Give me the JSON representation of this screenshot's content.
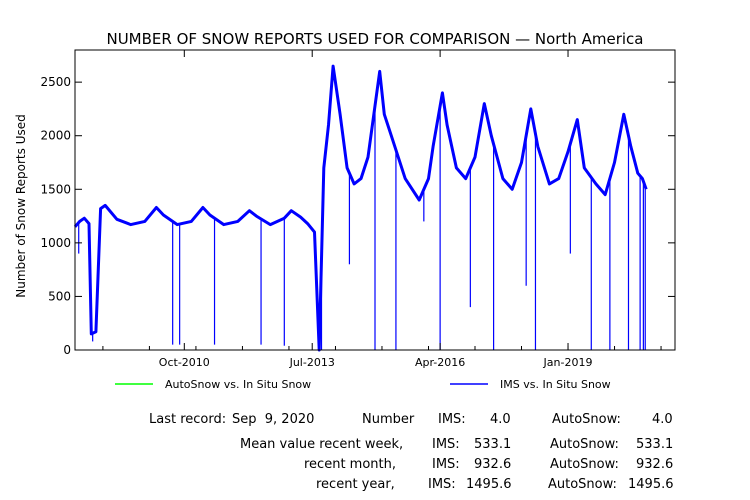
{
  "chart_data": {
    "type": "line",
    "title": "NUMBER OF SNOW REPORTS USED FOR COMPARISON — North America",
    "ylabel": "Number of Snow Reports Used",
    "xlabel": "",
    "ylim": [
      0,
      2800
    ],
    "xlim": [
      2008.4,
      2021.3
    ],
    "y_ticks": [
      0,
      500,
      1000,
      1500,
      2000,
      2500
    ],
    "x_ticks": [
      {
        "label": "Oct-2010",
        "value": 2010.75
      },
      {
        "label": "Jul-2013",
        "value": 2013.5
      },
      {
        "label": "Apr-2016",
        "value": 2016.25
      },
      {
        "label": "Jan-2019",
        "value": 2019.0
      }
    ],
    "grid": false,
    "legend_placement": "bottom",
    "series": [
      {
        "name": "AutoSnow vs. In Situ Snow",
        "color": "#00ff00",
        "points": []
      },
      {
        "name": "IMS vs. In Situ Snow",
        "color": "#0000ff",
        "points": [
          [
            2008.4,
            1150
          ],
          [
            2008.5,
            1200
          ],
          [
            2008.6,
            1230
          ],
          [
            2008.7,
            1180
          ],
          [
            2008.75,
            150
          ],
          [
            2008.85,
            170
          ],
          [
            2008.95,
            1320
          ],
          [
            2009.05,
            1350
          ],
          [
            2009.3,
            1220
          ],
          [
            2009.6,
            1170
          ],
          [
            2009.9,
            1200
          ],
          [
            2010.15,
            1330
          ],
          [
            2010.3,
            1260
          ],
          [
            2010.6,
            1170
          ],
          [
            2010.9,
            1200
          ],
          [
            2011.15,
            1330
          ],
          [
            2011.3,
            1260
          ],
          [
            2011.6,
            1170
          ],
          [
            2011.9,
            1200
          ],
          [
            2012.15,
            1300
          ],
          [
            2012.3,
            1250
          ],
          [
            2012.6,
            1170
          ],
          [
            2012.9,
            1230
          ],
          [
            2013.05,
            1300
          ],
          [
            2013.25,
            1240
          ],
          [
            2013.4,
            1180
          ],
          [
            2013.55,
            1100
          ],
          [
            2013.65,
            0
          ],
          [
            2013.75,
            1700
          ],
          [
            2013.85,
            2100
          ],
          [
            2013.95,
            2650
          ],
          [
            2014.1,
            2200
          ],
          [
            2014.25,
            1700
          ],
          [
            2014.4,
            1550
          ],
          [
            2014.55,
            1600
          ],
          [
            2014.7,
            1800
          ],
          [
            2014.95,
            2600
          ],
          [
            2015.05,
            2200
          ],
          [
            2015.2,
            2000
          ],
          [
            2015.5,
            1600
          ],
          [
            2015.8,
            1400
          ],
          [
            2016.0,
            1600
          ],
          [
            2016.1,
            1900
          ],
          [
            2016.3,
            2400
          ],
          [
            2016.4,
            2100
          ],
          [
            2016.6,
            1700
          ],
          [
            2016.8,
            1600
          ],
          [
            2017.0,
            1800
          ],
          [
            2017.2,
            2300
          ],
          [
            2017.35,
            2000
          ],
          [
            2017.6,
            1600
          ],
          [
            2017.8,
            1500
          ],
          [
            2018.0,
            1750
          ],
          [
            2018.2,
            2250
          ],
          [
            2018.35,
            1900
          ],
          [
            2018.6,
            1550
          ],
          [
            2018.8,
            1600
          ],
          [
            2019.0,
            1850
          ],
          [
            2019.2,
            2150
          ],
          [
            2019.35,
            1700
          ],
          [
            2019.6,
            1550
          ],
          [
            2019.8,
            1450
          ],
          [
            2020.0,
            1750
          ],
          [
            2020.2,
            2200
          ],
          [
            2020.35,
            1900
          ],
          [
            2020.5,
            1650
          ],
          [
            2020.6,
            1600
          ],
          [
            2020.68,
            1500
          ]
        ],
        "dips": [
          [
            2008.48,
            900
          ],
          [
            2008.78,
            80
          ],
          [
            2010.5,
            50
          ],
          [
            2010.65,
            50
          ],
          [
            2011.4,
            50
          ],
          [
            2012.4,
            50
          ],
          [
            2012.9,
            40
          ],
          [
            2013.7,
            0
          ],
          [
            2014.3,
            800
          ],
          [
            2014.85,
            0
          ],
          [
            2015.3,
            0
          ],
          [
            2015.9,
            1200
          ],
          [
            2016.25,
            0
          ],
          [
            2016.9,
            400
          ],
          [
            2017.4,
            0
          ],
          [
            2018.1,
            600
          ],
          [
            2018.3,
            0
          ],
          [
            2019.05,
            900
          ],
          [
            2019.5,
            0
          ],
          [
            2019.9,
            0
          ],
          [
            2020.3,
            0
          ],
          [
            2020.55,
            0
          ],
          [
            2020.62,
            0
          ],
          [
            2020.66,
            0
          ]
        ]
      }
    ]
  },
  "stats": {
    "last_record_label": "Last record:",
    "last_record_date": "Sep  9, 2020",
    "number_label": "Number",
    "ims_label": "IMS:",
    "autosnow_label": "AutoSnow:",
    "number_ims": "4.0",
    "number_autosnow": "4.0",
    "mean_week_label": "Mean value recent week,",
    "week_ims": "533.1",
    "week_autosnow": "533.1",
    "month_label": "recent month,",
    "month_ims": "932.6",
    "month_autosnow": "932.6",
    "year_label": "recent year,",
    "year_ims": "1495.6",
    "year_autosnow": "1495.6"
  }
}
